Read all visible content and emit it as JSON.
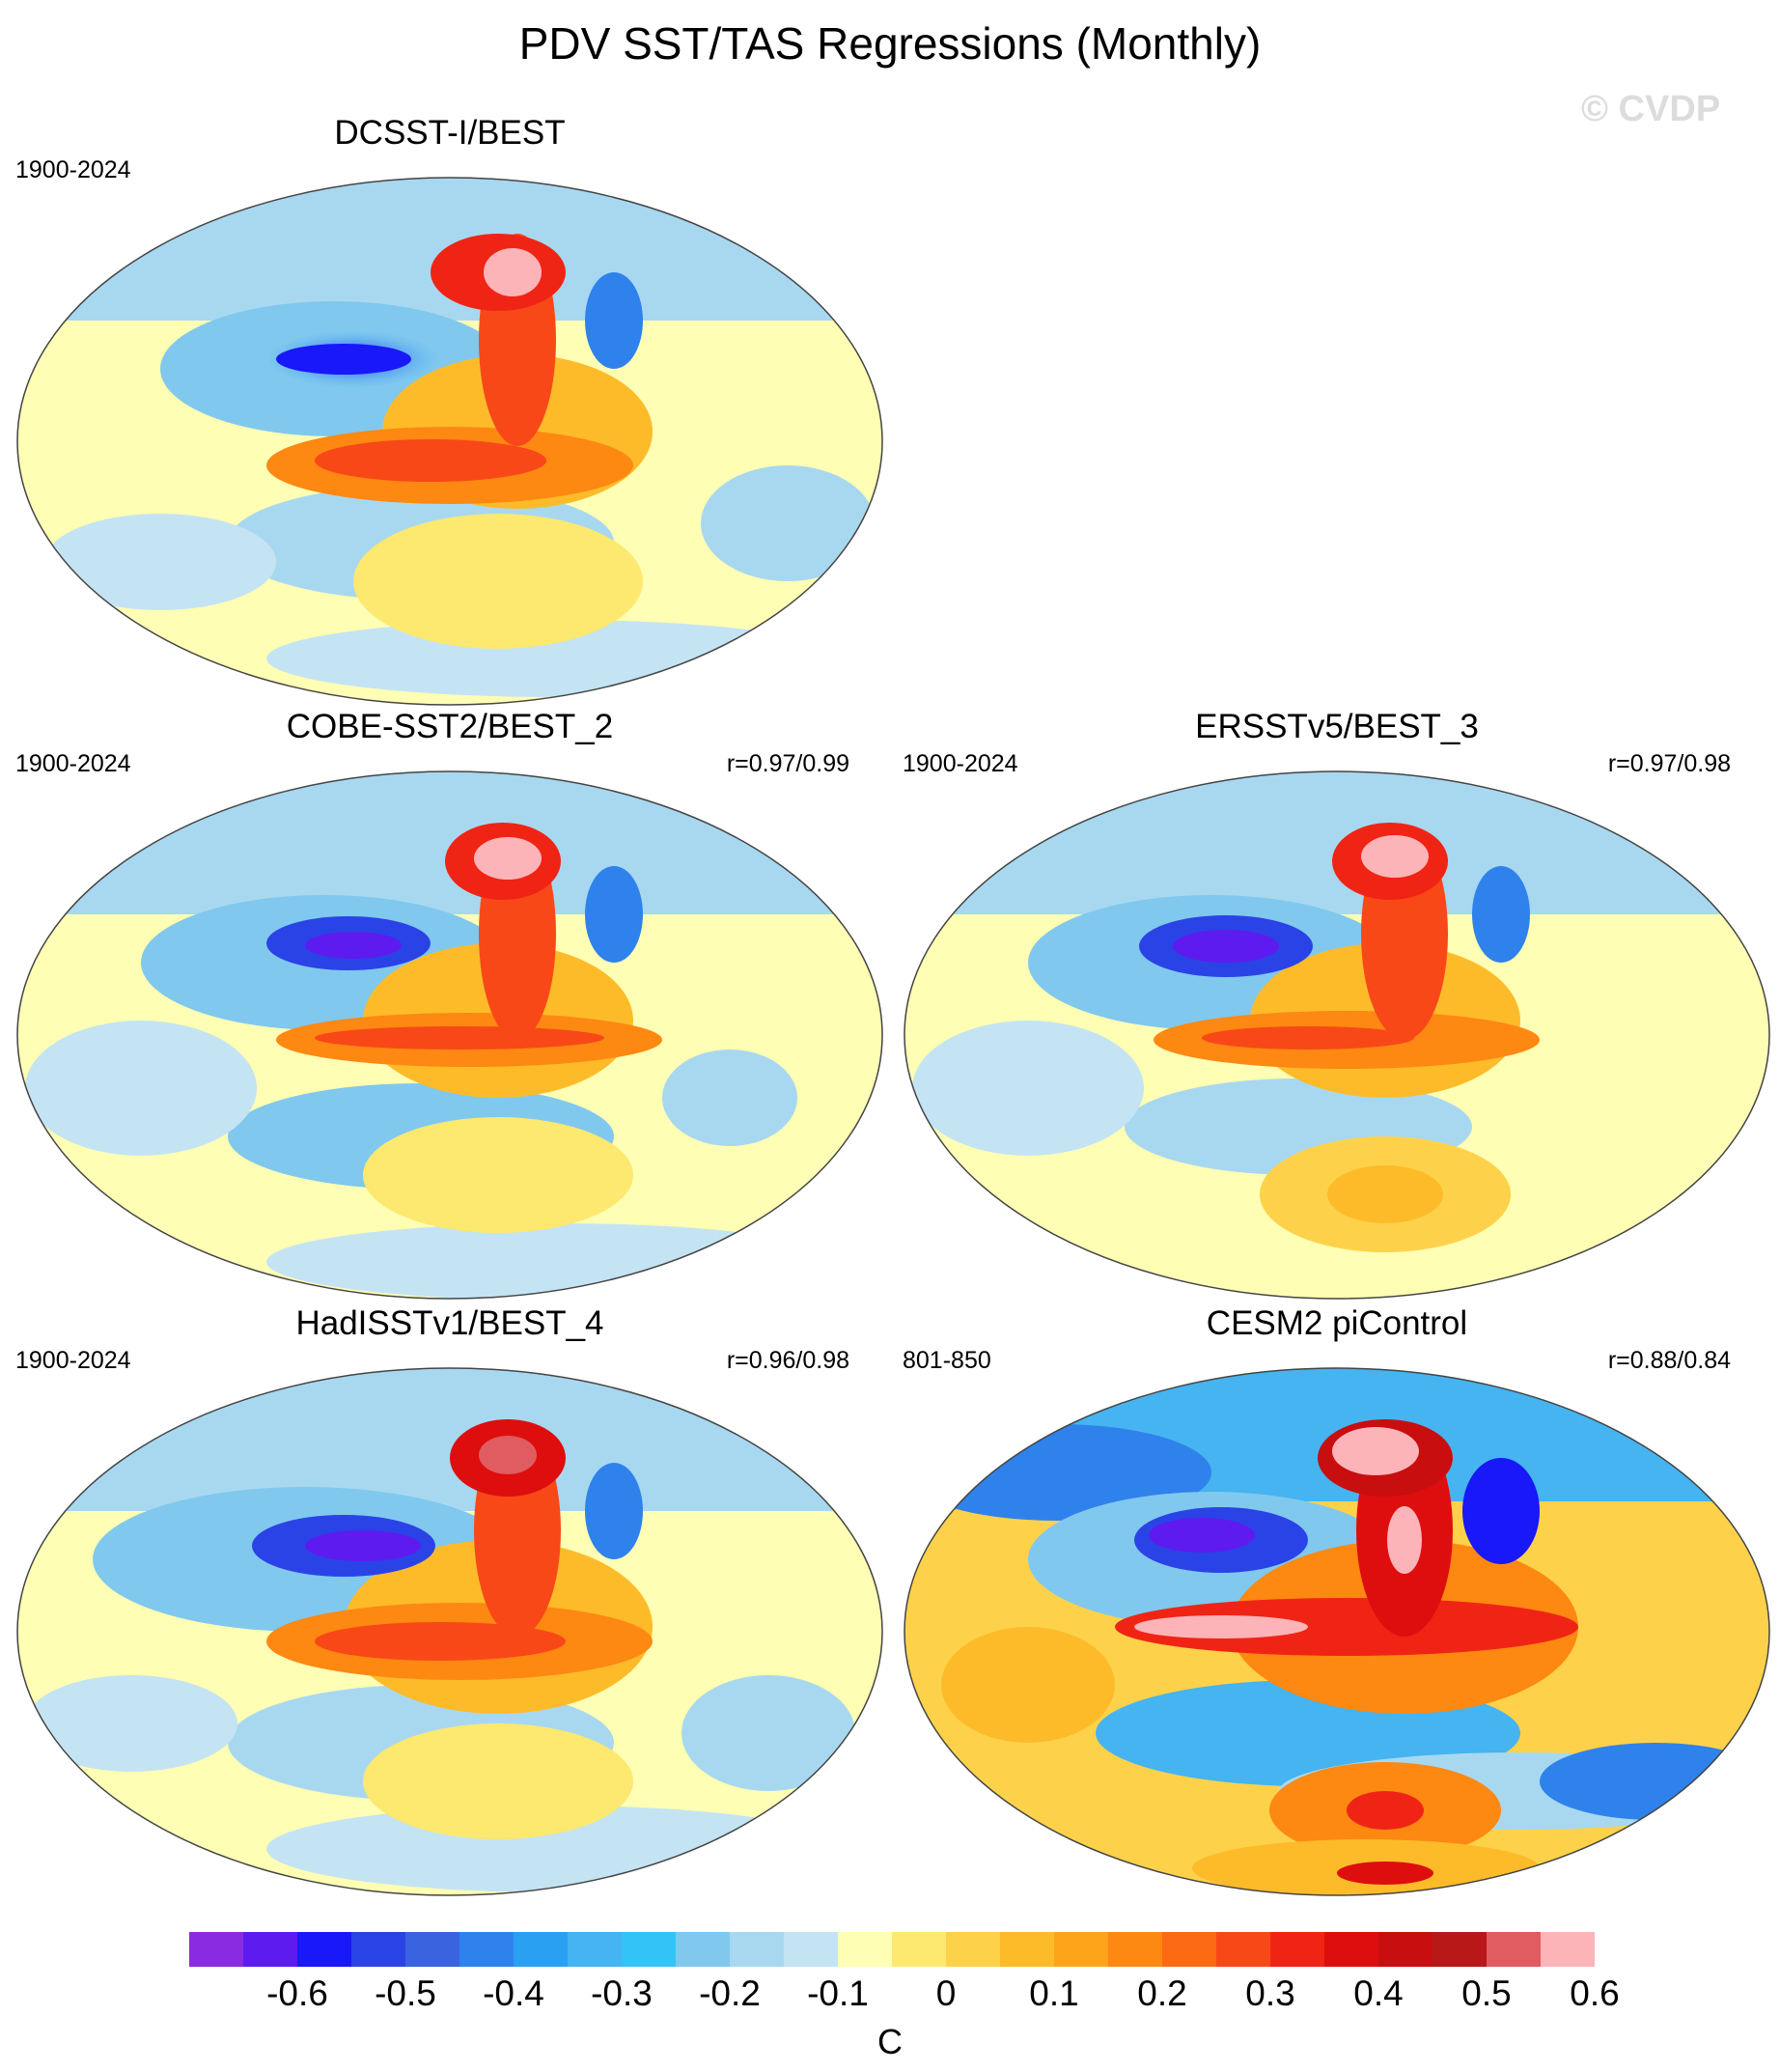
{
  "title": "PDV SST/TAS Regressions (Monthly)",
  "copyright": "© CVDP",
  "panels": [
    {
      "name": "DCSST-I/BEST",
      "period": "1900-2024",
      "r": ""
    },
    {
      "name": "COBE-SST2/BEST_2",
      "period": "1900-2024",
      "r": "r=0.97/0.99"
    },
    {
      "name": "ERSSTv5/BEST_3",
      "period": "1900-2024",
      "r": "r=0.97/0.98"
    },
    {
      "name": "HadISSTv1/BEST_4",
      "period": "1900-2024",
      "r": "r=0.96/0.98"
    },
    {
      "name": "CESM2 piControl",
      "period": "801-850",
      "r": "r=0.88/0.84"
    }
  ],
  "colorbar": {
    "units": "C",
    "tick_labels": [
      "-0.6",
      "-0.5",
      "-0.4",
      "-0.3",
      "-0.2",
      "-0.1",
      "0",
      "0.1",
      "0.2",
      "0.3",
      "0.4",
      "0.5",
      "0.6"
    ],
    "colors": [
      "#8a2be2",
      "#5d1bf0",
      "#1818f8",
      "#2a43e6",
      "#3a63e0",
      "#2f82ec",
      "#2aa0f2",
      "#45b4f0",
      "#33c4f6",
      "#80c8ee",
      "#a8d8f0",
      "#c4e4f4",
      "#fefeb4",
      "#fde870",
      "#fdd24a",
      "#fdbb2a",
      "#fda41a",
      "#fd8812",
      "#fd6a14",
      "#f84818",
      "#f02414",
      "#de0e0e",
      "#c80e0e",
      "#b81818",
      "#e05c60",
      "#fcb4b8"
    ]
  }
}
